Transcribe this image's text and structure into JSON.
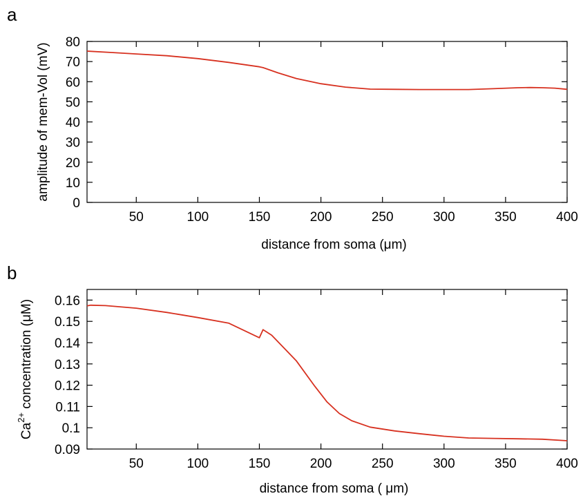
{
  "chart_data": [
    {
      "panel": "a",
      "type": "line",
      "xlabel": "distance from soma (μm)",
      "ylabel": "amplitude of mem-Vol (mV)",
      "xlim": [
        10,
        400
      ],
      "ylim": [
        0,
        80
      ],
      "x_ticks": [
        50,
        100,
        150,
        200,
        250,
        300,
        350,
        400
      ],
      "y_ticks": [
        0,
        10,
        20,
        30,
        40,
        50,
        60,
        70,
        80
      ],
      "line_color": "#d7301f",
      "series": [
        {
          "x": [
            10,
            30,
            50,
            75,
            100,
            125,
            150,
            153,
            165,
            180,
            200,
            220,
            240,
            260,
            280,
            300,
            320,
            340,
            360,
            370,
            380,
            390,
            400
          ],
          "y": [
            75.2,
            74.5,
            73.8,
            72.9,
            71.5,
            69.6,
            67.4,
            67.0,
            64.4,
            61.6,
            59.0,
            57.3,
            56.3,
            56.2,
            56.1,
            56.1,
            56.1,
            56.5,
            57.0,
            57.1,
            57.0,
            56.8,
            56.2
          ]
        }
      ]
    },
    {
      "panel": "b",
      "type": "line",
      "xlabel": "distance from soma ( μm)",
      "ylabel_main": "Ca",
      "ylabel_sup": "2+",
      "ylabel_rest": " concentration (μM)",
      "xlim": [
        10,
        400
      ],
      "ylim": [
        0.09,
        0.165
      ],
      "x_ticks": [
        50,
        100,
        150,
        200,
        250,
        300,
        350,
        400
      ],
      "y_ticks": [
        0.09,
        0.1,
        0.11,
        0.12,
        0.13,
        0.14,
        0.15,
        0.16
      ],
      "y_tick_labels": [
        "0.09",
        "0.1",
        "0.11",
        "0.12",
        "0.13",
        "0.14",
        "0.15",
        "0.16"
      ],
      "line_color": "#d7301f",
      "series": [
        {
          "x": [
            10,
            13,
            25,
            50,
            75,
            100,
            125,
            150,
            153,
            160,
            180,
            195,
            205,
            215,
            225,
            240,
            260,
            280,
            300,
            320,
            340,
            360,
            380,
            400
          ],
          "y": [
            0.1573,
            0.1576,
            0.1574,
            0.1562,
            0.1542,
            0.1518,
            0.1492,
            0.1423,
            0.1461,
            0.1435,
            0.1315,
            0.1195,
            0.1121,
            0.1067,
            0.1033,
            0.1003,
            0.0985,
            0.0972,
            0.096,
            0.0952,
            0.095,
            0.0948,
            0.0946,
            0.0939
          ]
        }
      ]
    }
  ]
}
